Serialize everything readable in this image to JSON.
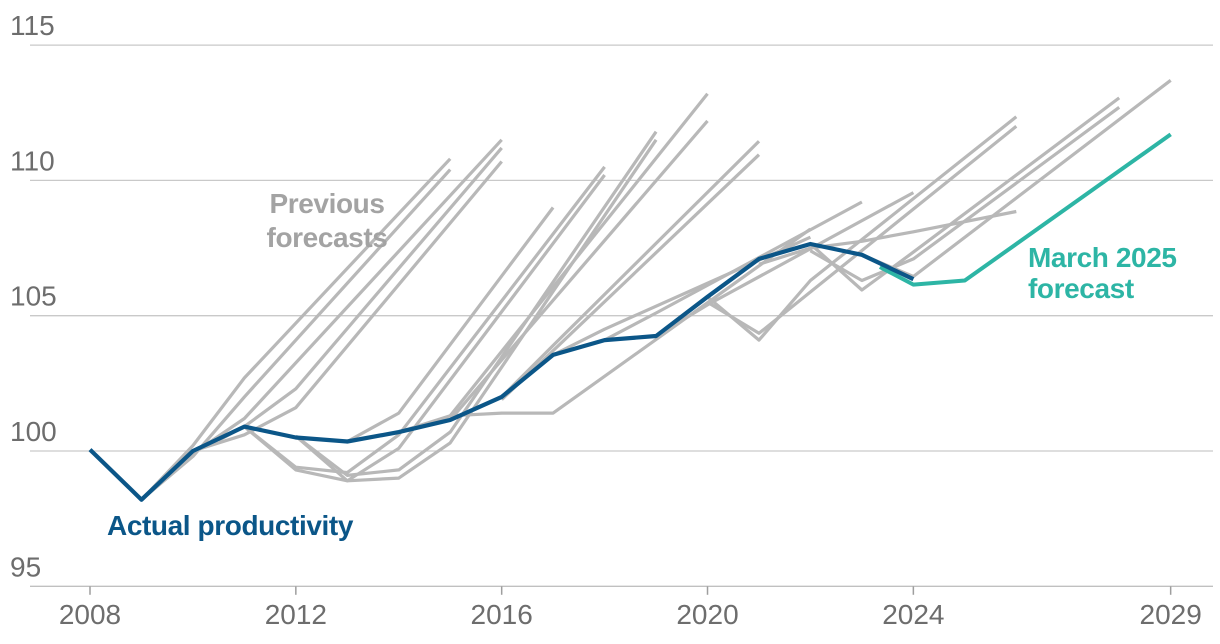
{
  "annotations": {
    "previous_forecasts": "Previous\nforecasts",
    "actual_productivity": "Actual productivity",
    "march_2025_forecast": "March 2025\nforecast"
  },
  "colors": {
    "actual_blue": "#0b5688",
    "forecast_teal": "#2db5a5",
    "previous_gray": "#b8b8b8",
    "previous_label_gray": "#a3a3a3",
    "gridline": "#c9c9c9",
    "axis_line": "#c0c0c0",
    "tick_mark": "#9e9e9e",
    "axis_text": "#6d6d6d",
    "background": "#ffffff"
  },
  "chart_data": {
    "type": "line",
    "title": "",
    "xlabel": "",
    "ylabel": "",
    "x_ticks": [
      2008,
      2012,
      2016,
      2020,
      2024,
      2029
    ],
    "x_tick_labels": [
      "2008",
      "2012",
      "2016",
      "2020",
      "2024",
      "2029"
    ],
    "y_ticks": [
      95,
      100,
      105,
      110,
      115
    ],
    "y_tick_labels": [
      "95",
      "100",
      "105",
      "110",
      "115"
    ],
    "xlim": [
      2006.8,
      2029.9
    ],
    "ylim": [
      95,
      115
    ],
    "grid": "horizontal",
    "legend": "inline-annotations",
    "series": [
      {
        "name": "Actual productivity",
        "role": "actual",
        "points": [
          [
            2008,
            100.05
          ],
          [
            2009,
            98.2
          ],
          [
            2010,
            100.0
          ],
          [
            2011,
            100.9
          ],
          [
            2012,
            100.5
          ],
          [
            2013,
            100.35
          ],
          [
            2014,
            100.7
          ],
          [
            2015,
            101.15
          ],
          [
            2016,
            102.0
          ],
          [
            2017,
            103.55
          ],
          [
            2018,
            104.1
          ],
          [
            2019,
            104.25
          ],
          [
            2020,
            105.7
          ],
          [
            2021,
            107.1
          ],
          [
            2022,
            107.65
          ],
          [
            2023,
            107.25
          ],
          [
            2024,
            106.35
          ]
        ]
      },
      {
        "name": "March 2025 forecast",
        "role": "forecast",
        "points": [
          [
            2023.35,
            106.8
          ],
          [
            2024,
            106.15
          ],
          [
            2025,
            106.3
          ],
          [
            2026,
            107.65
          ],
          [
            2027,
            109.0
          ],
          [
            2028,
            110.35
          ],
          [
            2029,
            111.7
          ]
        ]
      },
      {
        "name": "Previous forecasts",
        "role": "previous",
        "lines": [
          [
            [
              2009,
              98.2
            ],
            [
              2010,
              100.2
            ],
            [
              2011,
              102.7
            ],
            [
              2015,
              110.8
            ]
          ],
          [
            [
              2009,
              98.2
            ],
            [
              2010,
              99.8
            ],
            [
              2011,
              102.0
            ],
            [
              2015,
              110.4
            ]
          ],
          [
            [
              2009.5,
              99.0
            ],
            [
              2010,
              99.9
            ],
            [
              2011,
              101.2
            ],
            [
              2016,
              111.5
            ]
          ],
          [
            [
              2010,
              100.0
            ],
            [
              2011,
              100.6
            ],
            [
              2012,
              101.6
            ],
            [
              2016,
              110.7
            ]
          ],
          [
            [
              2010.5,
              100.4
            ],
            [
              2011,
              100.9
            ],
            [
              2012,
              102.3
            ],
            [
              2016,
              111.2
            ]
          ],
          [
            [
              2011,
              100.9
            ],
            [
              2012,
              99.4
            ],
            [
              2013,
              99.2
            ],
            [
              2014,
              100.6
            ],
            [
              2018,
              110.5
            ]
          ],
          [
            [
              2011,
              100.9
            ],
            [
              2012,
              99.3
            ],
            [
              2013,
              98.9
            ],
            [
              2014,
              100.1
            ],
            [
              2018,
              110.2
            ]
          ],
          [
            [
              2012,
              100.55
            ],
            [
              2013,
              99.1
            ],
            [
              2014,
              99.3
            ],
            [
              2015,
              100.7
            ],
            [
              2019,
              111.8
            ]
          ],
          [
            [
              2012,
              100.55
            ],
            [
              2013,
              98.9
            ],
            [
              2014,
              99.0
            ],
            [
              2015,
              100.3
            ],
            [
              2019,
              111.5
            ]
          ],
          [
            [
              2013,
              100.35
            ],
            [
              2014,
              101.4
            ],
            [
              2017,
              109.0
            ]
          ],
          [
            [
              2015,
              101.3
            ],
            [
              2020,
              113.2
            ]
          ],
          [
            [
              2015,
              101.15
            ],
            [
              2020,
              112.2
            ]
          ],
          [
            [
              2016,
              102.0
            ],
            [
              2017,
              103.9
            ],
            [
              2021,
              111.45
            ]
          ],
          [
            [
              2016,
              101.9
            ],
            [
              2021,
              110.95
            ]
          ],
          [
            [
              2014,
              100.7
            ],
            [
              2015,
              101.3
            ],
            [
              2016,
              101.4
            ],
            [
              2017,
              101.4
            ],
            [
              2022,
              108.2
            ]
          ],
          [
            [
              2017,
              103.55
            ],
            [
              2018,
              104.5
            ],
            [
              2022,
              107.9
            ]
          ],
          [
            [
              2018,
              104.1
            ],
            [
              2019,
              105.1
            ],
            [
              2023,
              109.2
            ]
          ],
          [
            [
              2019,
              104.25
            ],
            [
              2020,
              105.4
            ],
            [
              2024,
              109.55
            ]
          ],
          [
            [
              2020,
              105.7
            ],
            [
              2021,
              104.1
            ],
            [
              2022,
              106.3
            ],
            [
              2026,
              112.35
            ]
          ],
          [
            [
              2020,
              105.5
            ],
            [
              2021,
              104.35
            ],
            [
              2026,
              112.0
            ]
          ],
          [
            [
              2022,
              107.65
            ],
            [
              2023,
              105.95
            ],
            [
              2024,
              107.35
            ],
            [
              2028,
              113.05
            ]
          ],
          [
            [
              2022,
              107.4
            ],
            [
              2023,
              106.3
            ],
            [
              2024,
              107.1
            ],
            [
              2028,
              112.7
            ]
          ],
          [
            [
              2023,
              107.25
            ],
            [
              2024,
              106.45
            ],
            [
              2029,
              113.7
            ]
          ],
          [
            [
              2021,
              106.9
            ],
            [
              2022,
              107.5
            ],
            [
              2023,
              107.75
            ],
            [
              2024,
              108.1
            ],
            [
              2026,
              108.85
            ]
          ]
        ]
      }
    ]
  }
}
